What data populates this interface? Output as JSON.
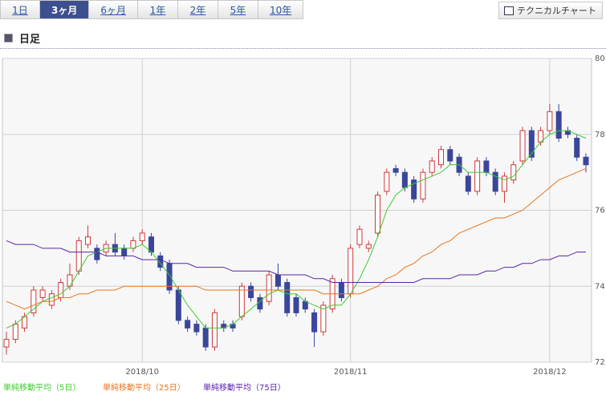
{
  "tabs": [
    "1日",
    "3ヶ月",
    "6ヶ月",
    "1年",
    "2年",
    "5年",
    "10年"
  ],
  "selected_tab": 1,
  "button": "テクニカルチャート",
  "section_title": "日足",
  "chart_data": {
    "type": "candlestick",
    "categories": [
      null,
      null,
      null,
      null,
      null,
      null,
      null,
      null,
      null,
      null,
      null,
      null,
      null,
      null,
      null,
      "2018/10",
      null,
      null,
      null,
      null,
      null,
      null,
      null,
      null,
      null,
      null,
      null,
      null,
      null,
      null,
      null,
      null,
      null,
      null,
      null,
      null,
      null,
      null,
      "2018/11",
      null,
      null,
      null,
      null,
      null,
      null,
      null,
      null,
      null,
      null,
      null,
      null,
      null,
      null,
      null,
      null,
      null,
      null,
      null,
      null,
      null,
      "2018/12",
      null,
      null,
      null,
      null
    ],
    "open": [
      72.4,
      72.6,
      72.9,
      73.3,
      73.7,
      73.5,
      73.7,
      74.0,
      74.4,
      75.1,
      75.0,
      74.9,
      75.1,
      75.0,
      75.0,
      75.2,
      75.3,
      74.8,
      74.6,
      73.9,
      73.1,
      73.0,
      72.9,
      72.4,
      73.0,
      73.0,
      73.2,
      74.0,
      73.7,
      73.6,
      74.3,
      74.1,
      73.7,
      73.6,
      73.3,
      72.8,
      73.4,
      74.1,
      73.8,
      75.1,
      75.0,
      75.4,
      76.5,
      77.1,
      77.0,
      76.8,
      76.3,
      77.0,
      77.2,
      77.6,
      77.4,
      76.9,
      76.5,
      77.3,
      77.0,
      76.5,
      76.8,
      77.3,
      78.1,
      77.8,
      78.1,
      78.6,
      78.1,
      77.9,
      77.4
    ],
    "high": [
      72.8,
      73.1,
      73.3,
      74.0,
      74.0,
      73.9,
      74.2,
      74.6,
      75.3,
      75.6,
      75.1,
      75.2,
      75.4,
      75.1,
      75.3,
      75.5,
      75.4,
      74.9,
      74.7,
      74.0,
      73.2,
      73.1,
      73.0,
      73.4,
      73.1,
      73.1,
      74.1,
      74.1,
      73.8,
      74.4,
      74.6,
      74.2,
      73.8,
      73.7,
      73.4,
      73.6,
      74.3,
      74.2,
      75.1,
      75.6,
      75.2,
      76.5,
      77.1,
      77.2,
      77.1,
      76.9,
      77.1,
      77.4,
      77.7,
      77.7,
      77.5,
      77.0,
      77.4,
      77.4,
      77.1,
      77.0,
      77.3,
      78.2,
      78.2,
      78.2,
      78.8,
      78.8,
      78.2,
      78.0,
      77.5
    ],
    "low": [
      72.2,
      72.5,
      72.8,
      73.2,
      73.6,
      73.4,
      73.6,
      73.9,
      74.3,
      75.0,
      74.6,
      74.8,
      74.8,
      74.7,
      74.9,
      75.1,
      74.8,
      74.4,
      73.8,
      73.0,
      72.8,
      72.7,
      72.3,
      72.3,
      72.8,
      72.8,
      73.1,
      73.6,
      73.3,
      73.5,
      73.9,
      73.2,
      73.2,
      73.3,
      72.4,
      72.7,
      73.3,
      73.6,
      73.7,
      75.0,
      74.9,
      75.3,
      76.4,
      76.9,
      76.5,
      76.2,
      76.2,
      76.9,
      77.1,
      77.2,
      76.9,
      76.4,
      76.4,
      76.9,
      76.4,
      76.2,
      76.7,
      77.2,
      77.3,
      77.7,
      78.0,
      77.8,
      77.9,
      77.3,
      77.0
    ],
    "close": [
      72.6,
      73.0,
      73.2,
      73.9,
      73.9,
      73.8,
      74.1,
      74.3,
      75.2,
      75.3,
      74.7,
      75.1,
      74.9,
      74.8,
      75.2,
      75.4,
      74.9,
      74.5,
      73.9,
      73.1,
      72.9,
      72.8,
      72.4,
      73.3,
      72.9,
      72.9,
      74.0,
      73.7,
      73.4,
      74.3,
      74.0,
      73.3,
      73.3,
      73.4,
      72.8,
      73.5,
      74.2,
      73.7,
      75.0,
      75.5,
      75.1,
      76.4,
      77.0,
      77.0,
      76.6,
      76.3,
      77.0,
      77.3,
      77.6,
      77.3,
      77.0,
      76.5,
      77.3,
      77.0,
      76.5,
      76.9,
      77.2,
      78.1,
      77.4,
      78.1,
      78.6,
      77.9,
      78.0,
      77.4,
      77.2
    ],
    "up_color": "#d0383a",
    "down_color": "#3a469a",
    "series": [
      {
        "name": "単純移動平均（5日）",
        "color": "#3ccc2e",
        "values": [
          72.9,
          73.0,
          73.2,
          73.4,
          73.6,
          73.7,
          73.8,
          74.0,
          74.4,
          74.8,
          74.9,
          75.0,
          75.0,
          75.0,
          75.0,
          75.1,
          74.9,
          74.6,
          74.3,
          73.9,
          73.5,
          73.2,
          72.9,
          72.9,
          72.9,
          73.0,
          73.2,
          73.4,
          73.6,
          73.8,
          73.9,
          73.8,
          73.8,
          73.6,
          73.5,
          73.4,
          73.5,
          73.5,
          73.8,
          74.2,
          74.7,
          75.3,
          76.0,
          76.4,
          76.6,
          76.7,
          76.8,
          76.9,
          77.0,
          77.2,
          77.2,
          77.0,
          77.0,
          77.0,
          76.9,
          76.8,
          76.9,
          77.2,
          77.5,
          77.8,
          78.0,
          78.1,
          78.1,
          78.0,
          77.9
        ]
      },
      {
        "name": "単純移動平均（25日）",
        "color": "#e8761e",
        "values": [
          73.6,
          73.5,
          73.4,
          73.5,
          73.6,
          73.6,
          73.7,
          73.7,
          73.8,
          73.8,
          73.9,
          73.9,
          73.9,
          74.0,
          74.0,
          74.0,
          74.0,
          74.0,
          74.0,
          74.0,
          74.0,
          74.0,
          73.9,
          73.9,
          73.9,
          73.9,
          73.9,
          73.9,
          73.9,
          73.9,
          73.9,
          73.9,
          73.9,
          73.9,
          73.9,
          73.8,
          73.8,
          73.8,
          73.8,
          73.8,
          73.9,
          74.0,
          74.2,
          74.3,
          74.5,
          74.6,
          74.8,
          74.9,
          75.1,
          75.2,
          75.4,
          75.5,
          75.6,
          75.7,
          75.8,
          75.8,
          75.9,
          76.0,
          76.2,
          76.4,
          76.6,
          76.8,
          76.9,
          77.0,
          77.1
        ]
      },
      {
        "name": "単純移動平均（75日）",
        "color": "#5a22aa",
        "values": [
          75.2,
          75.1,
          75.1,
          75.1,
          75.0,
          75.0,
          75.0,
          74.9,
          74.9,
          74.9,
          74.9,
          74.8,
          74.8,
          74.8,
          74.8,
          74.7,
          74.7,
          74.7,
          74.6,
          74.6,
          74.6,
          74.5,
          74.5,
          74.5,
          74.5,
          74.4,
          74.4,
          74.4,
          74.4,
          74.4,
          74.3,
          74.3,
          74.3,
          74.3,
          74.2,
          74.2,
          74.1,
          74.1,
          74.1,
          74.1,
          74.1,
          74.1,
          74.1,
          74.1,
          74.1,
          74.1,
          74.2,
          74.2,
          74.2,
          74.2,
          74.3,
          74.3,
          74.3,
          74.4,
          74.4,
          74.5,
          74.5,
          74.6,
          74.6,
          74.7,
          74.7,
          74.8,
          74.8,
          74.9,
          74.9
        ]
      }
    ],
    "ylim": [
      72,
      80
    ],
    "yticks": [
      72,
      74,
      76,
      78,
      80
    ],
    "grid": true
  }
}
